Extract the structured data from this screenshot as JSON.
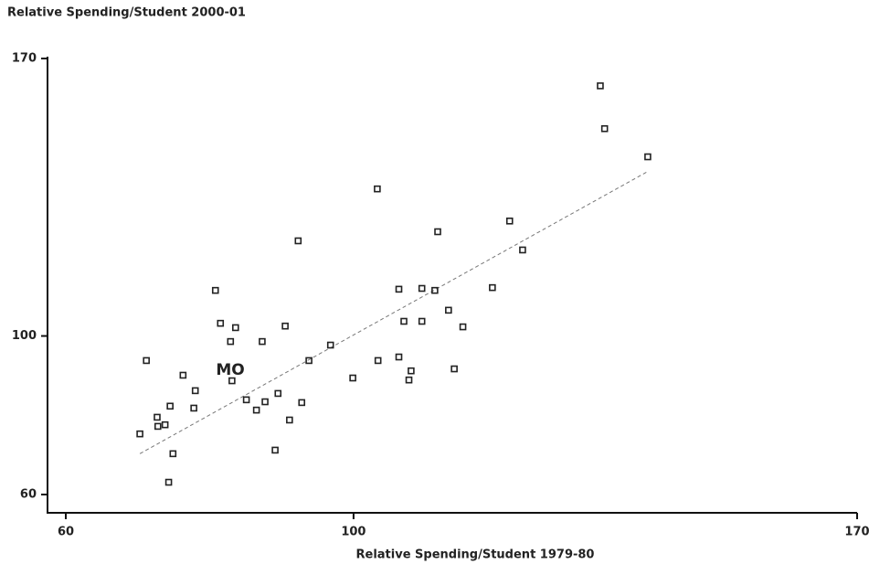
{
  "chart_data": {
    "type": "scatter",
    "title": "Relative Spending/Student 2000-01",
    "x_label": "Relative Spending/Student 1979-80",
    "annotation": "MO",
    "color": "#222222",
    "xlim": [
      60,
      170
    ],
    "ylim": [
      60,
      170
    ],
    "xticks": [
      60,
      100,
      170
    ],
    "yticks": [
      60,
      100,
      170
    ],
    "x": [
      70.3,
      71.2,
      72.7,
      72.8,
      73.8,
      74.5,
      74.3,
      74.9,
      76.3,
      77.8,
      78.0,
      80.8,
      81.5,
      82.9,
      83.1,
      83.6,
      85.1,
      86.5,
      87.3,
      87.7,
      89.1,
      89.5,
      90.5,
      91.1,
      92.3,
      92.8,
      93.8,
      96.8,
      99.9,
      103.3,
      103.4,
      106.3,
      106.3,
      107.0,
      107.7,
      108.0,
      109.5,
      109.5,
      111.3,
      111.7,
      113.2,
      114.0,
      115.2,
      119.3,
      121.7,
      123.5,
      134.3,
      134.9,
      140.9
    ],
    "y": [
      75.3,
      93.8,
      79.5,
      77.2,
      77.6,
      82.3,
      63.1,
      70.3,
      90.1,
      81.8,
      86.2,
      111.5,
      103.2,
      98.6,
      88.7,
      102.1,
      83.9,
      81.3,
      98.6,
      83.4,
      71.2,
      85.5,
      102.5,
      78.8,
      124.0,
      83.2,
      93.8,
      97.7,
      89.4,
      137.1,
      93.8,
      111.8,
      94.7,
      103.7,
      88.9,
      91.2,
      112.0,
      103.7,
      111.5,
      126.3,
      106.5,
      91.7,
      102.3,
      112.2,
      129.0,
      121.7,
      163.1,
      152.3,
      145.2
    ],
    "trendline": {
      "x": [
        70.3,
        140.9
      ],
      "y": [
        70.3,
        141.5
      ],
      "color": "#777777"
    }
  }
}
